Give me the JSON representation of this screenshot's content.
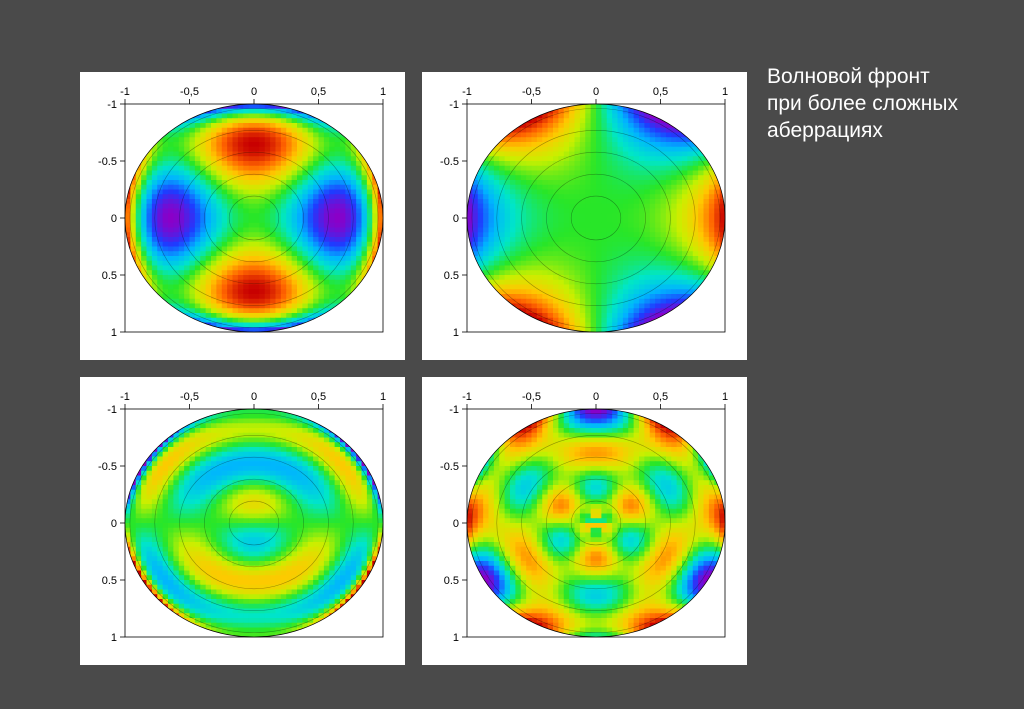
{
  "slide": {
    "title_lines": [
      "Волновой фронт",
      "при более сложных",
      "аберрациях"
    ],
    "background": "#4a4a4a"
  },
  "axes": {
    "x_ticks": [
      "-1",
      "-0,5",
      "0",
      "0,5",
      "1"
    ],
    "y_ticks": [
      "-1",
      "-0.5",
      "0",
      "0.5",
      "1"
    ]
  },
  "colormap": [
    "#8a00c8",
    "#1e3cff",
    "#00b4ff",
    "#00e6c8",
    "#28e628",
    "#c8f000",
    "#ffc800",
    "#ff6400",
    "#c80000"
  ],
  "plots": [
    {
      "id": "astigmatism-like",
      "pattern": "cos2"
    },
    {
      "id": "trefoil-like",
      "pattern": "cos3"
    },
    {
      "id": "radial-higher-order",
      "pattern": "radial"
    },
    {
      "id": "hexafoil-like",
      "pattern": "hex"
    }
  ]
}
